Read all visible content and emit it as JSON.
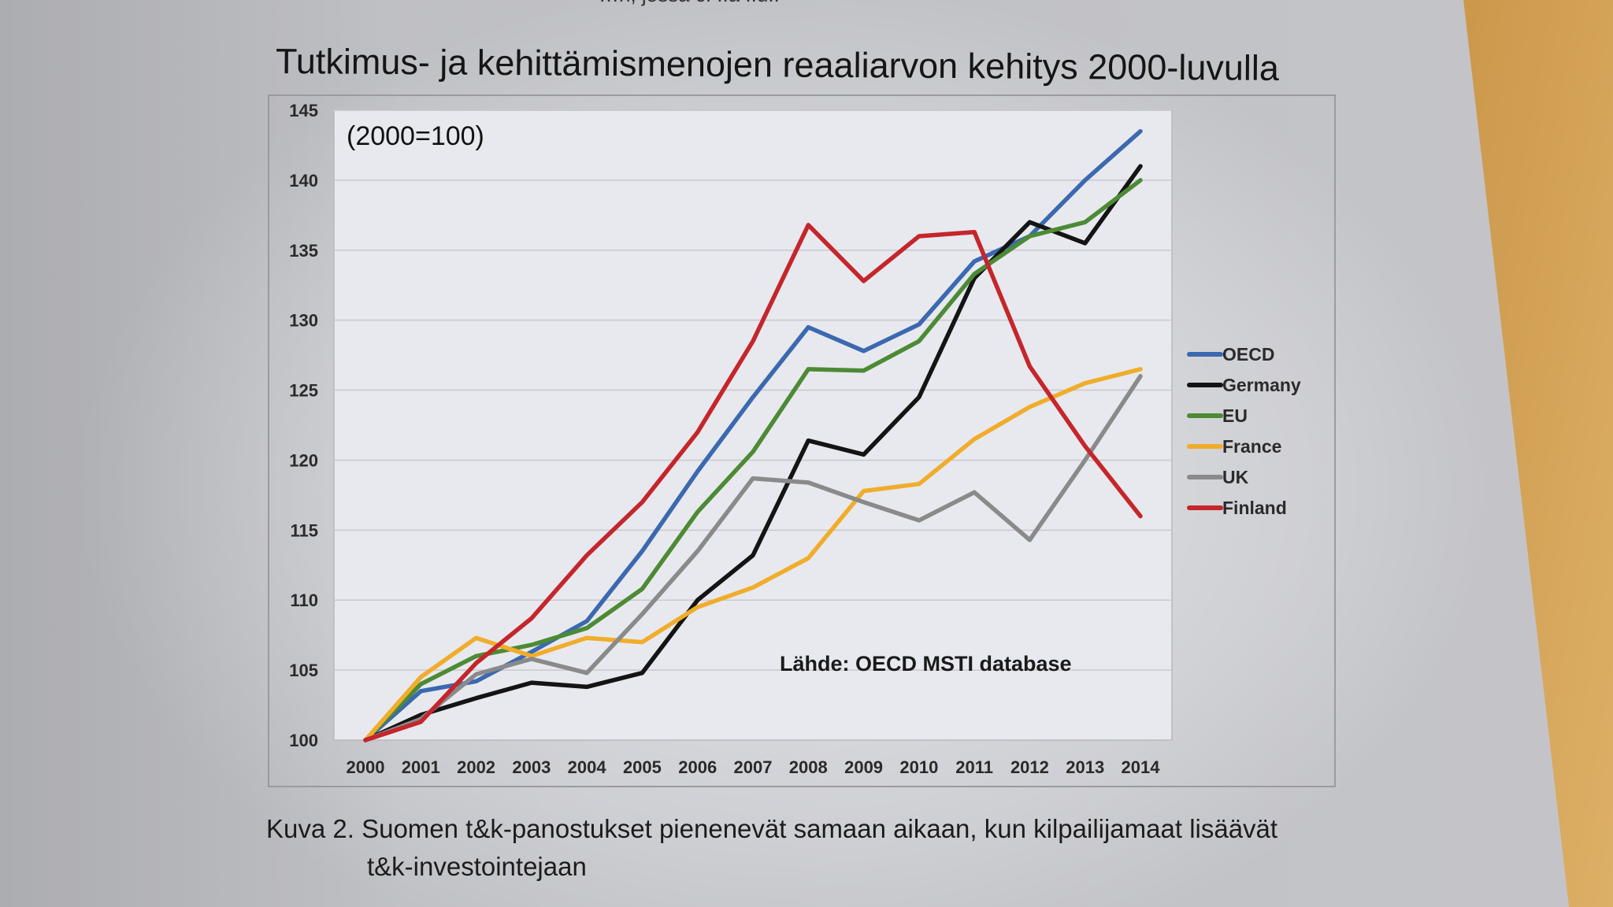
{
  "page": {
    "top_fragment": "…n, jossa c. ..a ..u..",
    "title": "Tutkimus- ja kehittämismenojen reaaliarvon kehitys 2000-luvulla",
    "caption_line1": "Kuva 2. Suomen t&k-panostukset pienenevät samaan aikaan, kun kilpailijamaat lisäävät",
    "caption_line2": "t&k-investointejaan"
  },
  "chart_data": {
    "type": "line",
    "title": "Tutkimus- ja kehittämismenojen reaaliarvon kehitys 2000-luvulla",
    "subtitle": "(2000=100)",
    "annotation": "Lähde: OECD MSTI database",
    "xlabel": "",
    "ylabel": "",
    "x": [
      2000,
      2001,
      2002,
      2003,
      2004,
      2005,
      2006,
      2007,
      2008,
      2009,
      2010,
      2011,
      2012,
      2013,
      2014
    ],
    "x_tick_labels": [
      "2000",
      "2001",
      "2002",
      "2003",
      "2004",
      "2005",
      "2006",
      "2007",
      "2008",
      "2009",
      "2010",
      "2011",
      "2012",
      "2013",
      "2014"
    ],
    "ylim": [
      100,
      145
    ],
    "y_ticks": [
      100,
      105,
      110,
      115,
      120,
      125,
      130,
      135,
      140,
      145
    ],
    "grid": "horizontal",
    "legend_position": "right",
    "series": [
      {
        "name": "OECD",
        "color": "#3b69b0",
        "values": [
          100,
          103.5,
          104.2,
          106.3,
          108.5,
          113.5,
          119.2,
          124.5,
          129.5,
          127.8,
          129.7,
          134.2,
          136.0,
          140.0,
          143.5
        ]
      },
      {
        "name": "Germany",
        "color": "#141414",
        "values": [
          100,
          101.8,
          103.0,
          104.1,
          103.8,
          104.8,
          110.0,
          113.2,
          121.4,
          120.4,
          124.5,
          133.0,
          137.0,
          135.5,
          141.0
        ]
      },
      {
        "name": "EU",
        "color": "#4d8a35",
        "values": [
          100,
          104.0,
          106.0,
          106.8,
          108.0,
          110.8,
          116.3,
          120.6,
          126.5,
          126.4,
          128.5,
          133.3,
          136.0,
          137.0,
          140.0
        ]
      },
      {
        "name": "France",
        "color": "#f0ad2c",
        "values": [
          100,
          104.5,
          107.3,
          106.0,
          107.3,
          107.0,
          109.5,
          110.9,
          113.0,
          117.8,
          118.3,
          121.5,
          123.8,
          125.5,
          126.5
        ]
      },
      {
        "name": "UK",
        "color": "#8a8a8a",
        "values": [
          100,
          101.5,
          104.7,
          105.8,
          104.8,
          109.0,
          113.5,
          118.7,
          118.4,
          117.0,
          115.7,
          117.7,
          114.3,
          120.0,
          126.0
        ]
      },
      {
        "name": "Finland",
        "color": "#c4262b",
        "values": [
          100,
          101.3,
          105.5,
          108.7,
          113.2,
          117.0,
          122.0,
          128.5,
          136.8,
          132.8,
          136.0,
          136.3,
          126.7,
          121.0,
          116.0
        ]
      }
    ]
  }
}
